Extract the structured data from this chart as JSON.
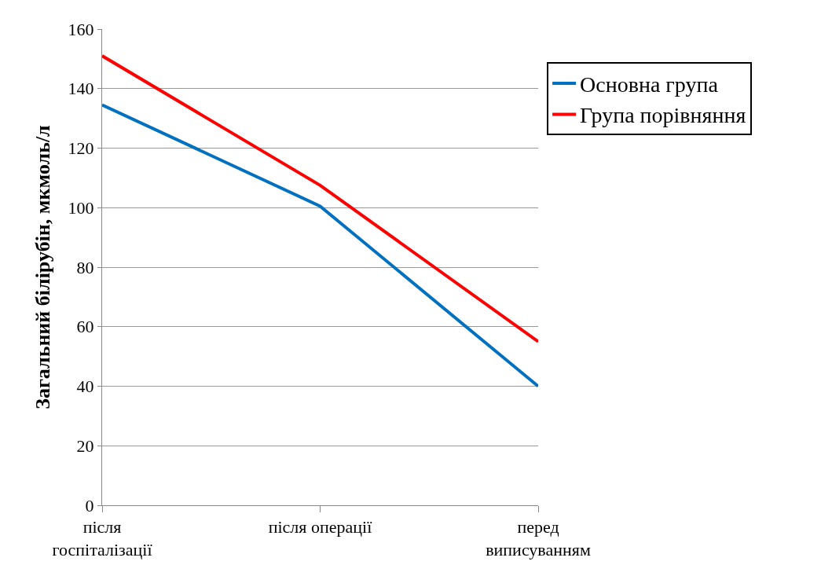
{
  "chart_data": {
    "type": "line",
    "ylabel": "Загальний білірубін, мкмоль/л",
    "categories": [
      "після\nгоспіталізації",
      "після операції",
      "перед\nвиписуванням"
    ],
    "series": [
      {
        "name": "Основна група",
        "color": "#0070c0",
        "values": [
          134.5,
          100.5,
          40
        ]
      },
      {
        "name": "Група порівняння",
        "color": "#ff0000",
        "values": [
          151,
          107.5,
          55
        ]
      }
    ],
    "ylim": [
      0,
      160
    ],
    "yticks": [
      0,
      20,
      40,
      60,
      80,
      100,
      120,
      140,
      160
    ],
    "grid": "y",
    "legend": "top right",
    "marker": "none",
    "line_style": "solid"
  }
}
